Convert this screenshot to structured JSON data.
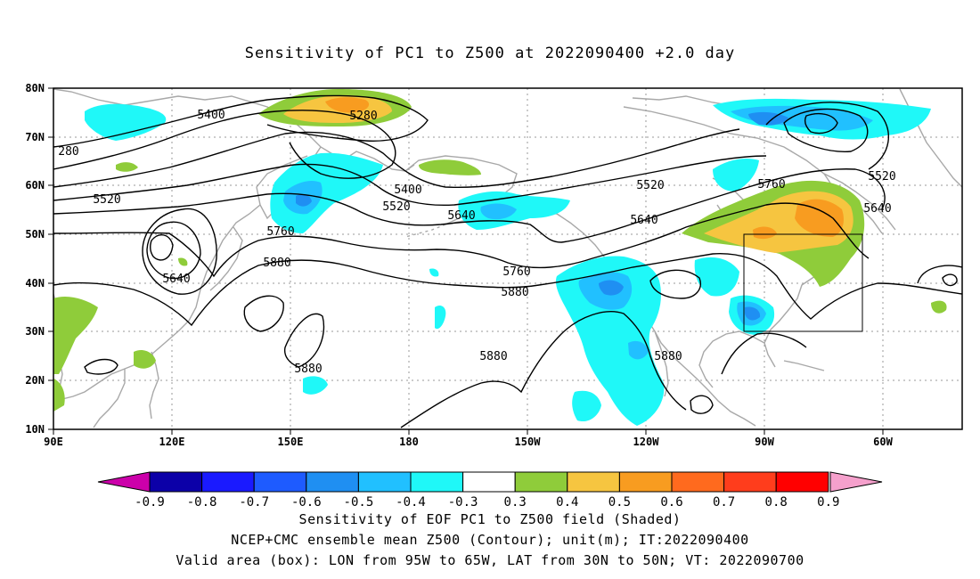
{
  "title": "Sensitivity of PC1 to Z500 at 2022090400 +2.0 day",
  "axes": {
    "lat_labels": [
      "80N",
      "70N",
      "60N",
      "50N",
      "40N",
      "30N",
      "20N",
      "10N"
    ],
    "lon_labels": [
      "90E",
      "120E",
      "150E",
      "180",
      "150W",
      "120W",
      "90W",
      "60W"
    ]
  },
  "contour_labels": {
    "c5400_a": "5400",
    "c5280_a": "5280",
    "c5280_b": "280",
    "c5520_a": "5520",
    "c5400_b": "5400",
    "c5520_b": "5520",
    "c5640_a": "5640",
    "c5520_c": "5520",
    "c5760_a": "5760",
    "c5520_d": "5520",
    "c5640_b": "5640",
    "c5640_c": "5640",
    "c5760_b": "5760",
    "c5880_a": "5880",
    "c5760_c": "5760",
    "c5880_b": "5880",
    "c5640_d": "5640",
    "c5880_c": "5880",
    "c5880_d": "5880",
    "c5880_e": "5880"
  },
  "colorbar": {
    "labels": [
      "-0.9",
      "-0.8",
      "-0.7",
      "-0.6",
      "-0.5",
      "-0.4",
      "-0.3",
      "0.3",
      "0.4",
      "0.5",
      "0.6",
      "0.7",
      "0.8",
      "0.9"
    ],
    "colors": [
      "#0c00a8",
      "#1a1aff",
      "#1e5bff",
      "#1f8ff2",
      "#21c0ff",
      "#1ff8f8",
      "#ffffff",
      "#8fcc3a",
      "#f6c540",
      "#f89c20",
      "#ff6a1e",
      "#ff3d1c",
      "#ff0000"
    ],
    "low_arrow_color": "#cc00aa",
    "high_arrow_color": "#f5a0cc"
  },
  "captions": {
    "line1": "Sensitivity of EOF PC1 to Z500 field (Shaded)",
    "line2": "NCEP+CMC ensemble mean Z500 (Contour); unit(m); IT:2022090400",
    "line3": "Valid area (box): LON from 95W to 65W, LAT from 30N to 50N; VT: 2022090700"
  },
  "colors": {
    "coast": "#a8a8a8",
    "contour": "#000000",
    "grid": "#9a9a9a"
  }
}
